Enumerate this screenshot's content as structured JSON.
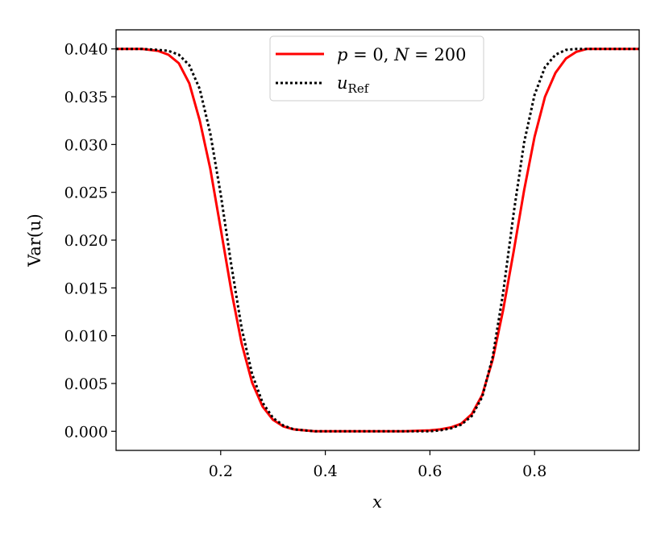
{
  "chart_data": {
    "type": "line",
    "xlabel": "x",
    "ylabel": "Var(u)",
    "xlim": [
      0.0,
      1.0
    ],
    "ylim": [
      -0.002,
      0.042
    ],
    "xticks": [
      0.2,
      0.4,
      0.6,
      0.8
    ],
    "xtick_labels": [
      "0.2",
      "0.4",
      "0.6",
      "0.8"
    ],
    "yticks": [
      0.0,
      0.005,
      0.01,
      0.015,
      0.02,
      0.025,
      0.03,
      0.035,
      0.04
    ],
    "ytick_labels": [
      "0.000",
      "0.005",
      "0.010",
      "0.015",
      "0.020",
      "0.025",
      "0.030",
      "0.035",
      "0.040"
    ],
    "grid": false,
    "legend_position": "top-center",
    "series": [
      {
        "name": "p = 0, N = 200",
        "legend_parts": {
          "a": "p",
          "b": " = 0, ",
          "c": "N",
          "d": " = 200"
        },
        "color": "#ff0000",
        "style": "solid",
        "x": [
          0.0,
          0.05,
          0.08,
          0.1,
          0.12,
          0.14,
          0.16,
          0.18,
          0.2,
          0.22,
          0.24,
          0.26,
          0.28,
          0.3,
          0.32,
          0.34,
          0.36,
          0.38,
          0.4,
          0.45,
          0.5,
          0.55,
          0.6,
          0.62,
          0.64,
          0.66,
          0.68,
          0.7,
          0.72,
          0.74,
          0.76,
          0.78,
          0.8,
          0.82,
          0.84,
          0.86,
          0.88,
          0.9,
          0.92,
          0.95,
          1.0
        ],
        "y": [
          0.04,
          0.04,
          0.0398,
          0.0394,
          0.0385,
          0.0364,
          0.0325,
          0.0275,
          0.0212,
          0.0148,
          0.0092,
          0.0051,
          0.0026,
          0.0012,
          0.0005,
          0.0002,
          0.0001,
          0.0,
          0.0,
          0.0,
          0.0,
          0.0,
          0.0001,
          0.0002,
          0.0004,
          0.0008,
          0.0018,
          0.0038,
          0.0075,
          0.0127,
          0.0188,
          0.0252,
          0.0308,
          0.035,
          0.0375,
          0.039,
          0.0397,
          0.04,
          0.04,
          0.04,
          0.04
        ]
      },
      {
        "name": "u_Ref",
        "legend_parts": {
          "a": "u",
          "sub": "Ref"
        },
        "color": "#000000",
        "style": "dotted",
        "x": [
          0.0,
          0.05,
          0.08,
          0.1,
          0.12,
          0.14,
          0.16,
          0.18,
          0.2,
          0.22,
          0.24,
          0.26,
          0.28,
          0.3,
          0.32,
          0.34,
          0.36,
          0.38,
          0.4,
          0.45,
          0.5,
          0.55,
          0.6,
          0.62,
          0.64,
          0.66,
          0.68,
          0.7,
          0.72,
          0.74,
          0.76,
          0.78,
          0.8,
          0.82,
          0.84,
          0.86,
          0.88,
          0.9,
          0.92,
          0.95,
          1.0
        ],
        "y": [
          0.04,
          0.04,
          0.0399,
          0.0398,
          0.0394,
          0.0383,
          0.0358,
          0.0312,
          0.0248,
          0.0175,
          0.0108,
          0.006,
          0.003,
          0.0014,
          0.0006,
          0.0002,
          0.0001,
          0.0,
          0.0,
          0.0,
          0.0,
          0.0,
          0.0,
          0.0001,
          0.0003,
          0.0007,
          0.0016,
          0.0036,
          0.0078,
          0.0145,
          0.0228,
          0.0302,
          0.0352,
          0.0381,
          0.0394,
          0.0399,
          0.04,
          0.04,
          0.04,
          0.04,
          0.04
        ]
      }
    ]
  }
}
